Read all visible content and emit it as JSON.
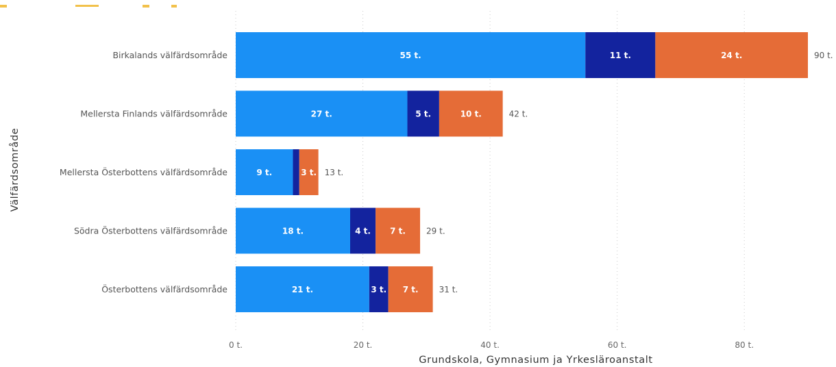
{
  "chart_data": {
    "type": "bar",
    "orientation": "horizontal",
    "stacked": true,
    "categories": [
      "Birkalands välfärdsområde",
      "Mellersta Finlands välfärdsområde",
      "Mellersta Österbottens välfärdsområde",
      "Södra Österbottens välfärdsområde",
      "Österbottens välfärdsområde"
    ],
    "series": [
      {
        "values": [
          55,
          27,
          9,
          18,
          21
        ],
        "labels": [
          "55 t.",
          "27 t.",
          "9 t.",
          "18 t.",
          "21 t."
        ],
        "color": "#1a90f5"
      },
      {
        "values": [
          11,
          5,
          1,
          4,
          3
        ],
        "labels": [
          "11 t.",
          "5 t.",
          "",
          "4 t.",
          "3 t."
        ],
        "color": "#13239e"
      },
      {
        "values": [
          24,
          10,
          3,
          7,
          7
        ],
        "labels": [
          "24 t.",
          "10 t.",
          "3 t.",
          "7 t.",
          "7 t."
        ],
        "color": "#e56c37"
      }
    ],
    "totals": [
      90,
      42,
      13,
      29,
      31
    ],
    "total_labels": [
      "90 t.",
      "42 t.",
      "13 t.",
      "29 t.",
      "31 t."
    ],
    "xlabel": "Grundskola, Gymnasium ja Yrkesläroanstalt",
    "ylabel": "Välfärdsområde",
    "xlim": [
      0,
      90
    ],
    "xticks": [
      0,
      20,
      40,
      60,
      80
    ],
    "xtick_labels": [
      "0 t.",
      "20 t.",
      "40 t.",
      "60 t.",
      "80 t."
    ],
    "grid": true,
    "legend": false
  }
}
